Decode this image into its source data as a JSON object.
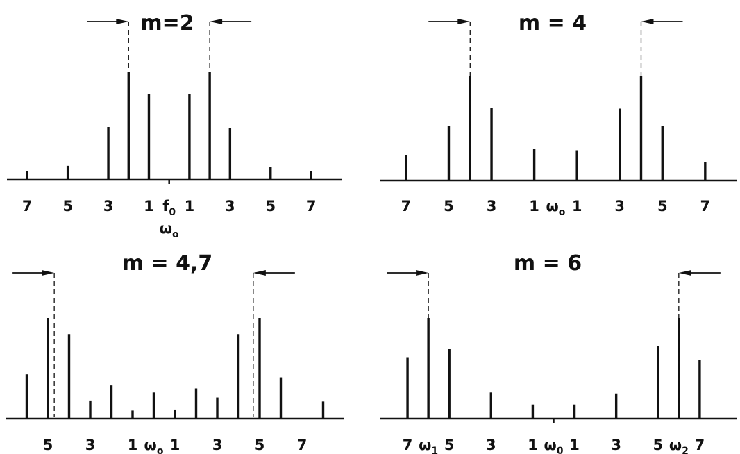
{
  "chart_data": [
    {
      "type": "bar",
      "title": "m=2",
      "ylim": [
        0,
        1
      ],
      "x": [
        -7,
        -5,
        -3,
        -2,
        -1,
        1,
        2,
        3,
        5,
        7
      ],
      "values": [
        0.08,
        0.13,
        0.49,
        1.0,
        0.8,
        0.8,
        1.0,
        0.48,
        0.12,
        0.08
      ],
      "xlim": [
        -8,
        8.5
      ],
      "center_tick": true,
      "cutoffs": [
        -2,
        2
      ],
      "tick_labels": [
        {
          "x": -7,
          "text": "7"
        },
        {
          "x": -5,
          "text": "5"
        },
        {
          "x": -3,
          "text": "3"
        },
        {
          "x": -1,
          "text": "1"
        },
        {
          "x": 0,
          "text": "f",
          "sub": "0"
        },
        {
          "x": 1,
          "text": "1"
        },
        {
          "x": 3,
          "text": "3"
        },
        {
          "x": 5,
          "text": "5"
        },
        {
          "x": 7,
          "text": "7"
        }
      ],
      "center_label": {
        "text": "ω",
        "sub": "o"
      }
    },
    {
      "type": "bar",
      "title": "m = 4",
      "ylim": [
        0,
        1
      ],
      "x": [
        -7,
        -5,
        -4,
        -3,
        -1,
        1,
        3,
        4,
        5,
        7
      ],
      "values": [
        0.24,
        0.52,
        1.0,
        0.7,
        0.3,
        0.29,
        0.69,
        1.0,
        0.52,
        0.18
      ],
      "xlim": [
        -8.2,
        8.5
      ],
      "center_tick": false,
      "cutoffs": [
        -4,
        4
      ],
      "tick_labels": [
        {
          "x": -7,
          "text": "7"
        },
        {
          "x": -5,
          "text": "5"
        },
        {
          "x": -3,
          "text": "3"
        },
        {
          "x": -1,
          "text": "1"
        },
        {
          "x": 0,
          "text": "ω",
          "sub": "o"
        },
        {
          "x": 1,
          "text": "1"
        },
        {
          "x": 3,
          "text": "3"
        },
        {
          "x": 5,
          "text": "5"
        },
        {
          "x": 7,
          "text": "7"
        }
      ]
    },
    {
      "type": "bar",
      "title": "m = 4,7",
      "ylim": [
        0,
        1
      ],
      "x": [
        -6,
        -5,
        -4,
        -3,
        -2,
        -1,
        0,
        1,
        2,
        3,
        4,
        5,
        6,
        8
      ],
      "values": [
        0.44,
        1.0,
        0.84,
        0.18,
        0.33,
        0.08,
        0.26,
        0.09,
        0.3,
        0.21,
        0.84,
        1.0,
        0.41,
        0.17
      ],
      "xlim": [
        -7,
        9
      ],
      "center_tick": false,
      "cutoffs": [
        -4.7,
        4.7
      ],
      "tick_labels": [
        {
          "x": -5,
          "text": "5"
        },
        {
          "x": -3,
          "text": "3"
        },
        {
          "x": -1,
          "text": "1"
        },
        {
          "x": 0,
          "text": "ω",
          "sub": "o"
        },
        {
          "x": 1,
          "text": "1"
        },
        {
          "x": 3,
          "text": "3"
        },
        {
          "x": 5,
          "text": "5"
        },
        {
          "x": 7,
          "text": "7"
        }
      ]
    },
    {
      "type": "bar",
      "title": "m = 6",
      "ylim": [
        0,
        1
      ],
      "x": [
        -7,
        -6,
        -5,
        -3,
        -1,
        1,
        3,
        5,
        6,
        7
      ],
      "values": [
        0.61,
        1.0,
        0.69,
        0.26,
        0.14,
        0.14,
        0.25,
        0.72,
        1.0,
        0.58
      ],
      "xlim": [
        -8.3,
        8.8
      ],
      "center_tick": true,
      "cutoffs": [
        -6,
        6
      ],
      "tick_labels": [
        {
          "x": -7,
          "text": "7"
        },
        {
          "x": -6,
          "text": "ω",
          "sub": "1"
        },
        {
          "x": -5,
          "text": "5"
        },
        {
          "x": -3,
          "text": "3"
        },
        {
          "x": -1,
          "text": "1"
        },
        {
          "x": 0,
          "text": "ω",
          "sub": "0"
        },
        {
          "x": 1,
          "text": "1"
        },
        {
          "x": 3,
          "text": "3"
        },
        {
          "x": 5,
          "text": "5"
        },
        {
          "x": 6,
          "text": "ω",
          "sub": "2"
        },
        {
          "x": 7,
          "text": "7"
        }
      ]
    }
  ]
}
